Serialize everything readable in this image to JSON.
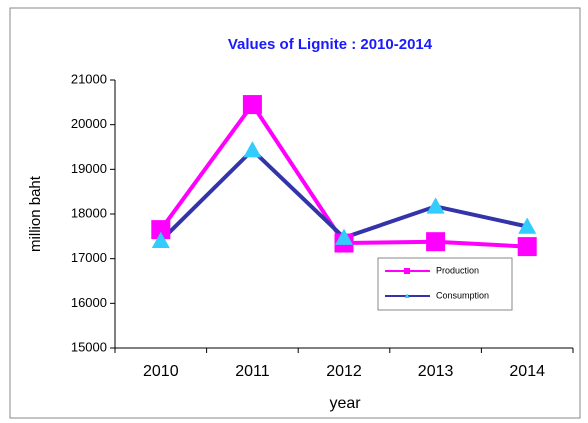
{
  "chart_data": {
    "type": "line",
    "title": "Values of Lignite : 2010-2014",
    "categories": [
      "2010",
      "2011",
      "2012",
      "2013",
      "2014"
    ],
    "x_label": "year",
    "y_label": "million baht",
    "series": [
      {
        "name": "Production",
        "color": "#ff00ff",
        "marker": "square",
        "values": [
          17650,
          20450,
          17350,
          17380,
          17270
        ]
      },
      {
        "name": "Consumption",
        "color": "#3333aa",
        "marker_color": "#33ccff",
        "marker": "triangle",
        "values": [
          17400,
          19430,
          17470,
          18170,
          17720
        ]
      }
    ],
    "ylim": [
      15000,
      21000
    ],
    "yticks": [
      15000,
      16000,
      17000,
      18000,
      19000,
      20000,
      21000
    ],
    "grid": false
  }
}
